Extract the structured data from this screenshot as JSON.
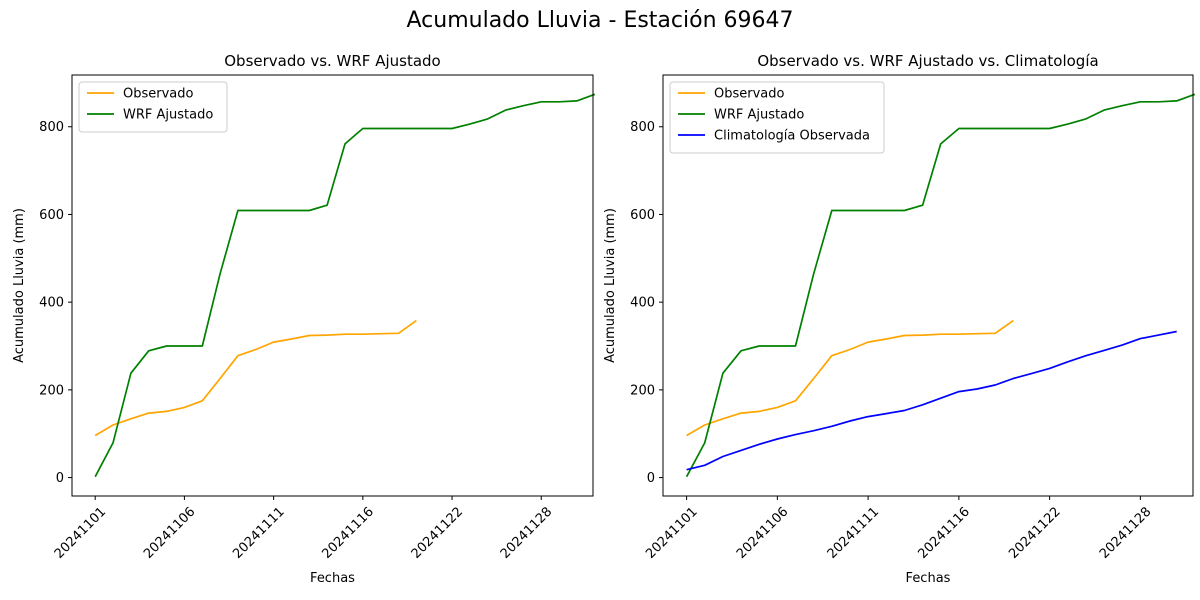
{
  "figure": {
    "suptitle": "Acumulado Lluvia - Estación 69647"
  },
  "chart_data": [
    {
      "type": "line",
      "title": "Observado vs. WRF Ajustado",
      "xlabel": "Fechas",
      "ylabel": "Acumulado Lluvia (mm)",
      "x_tick_labels": [
        "20241101",
        "20241106",
        "20241111",
        "20241116",
        "20241122",
        "20241128"
      ],
      "x_tick_index": [
        0,
        5,
        10,
        15,
        20,
        25
      ],
      "xlim_index": [
        -1.3,
        27.9
      ],
      "y_ticks": [
        0,
        200,
        400,
        600,
        800
      ],
      "ylim": [
        -42,
        918
      ],
      "grid": false,
      "legend": "upper left",
      "series": [
        {
          "name": "Observado",
          "color": "#FFA500",
          "values": [
            96,
            120,
            134,
            147,
            151,
            160,
            175,
            226,
            278,
            292,
            309,
            316,
            324,
            325,
            327,
            327,
            328,
            329,
            358
          ]
        },
        {
          "name": "WRF Ajustado",
          "color": "#008000",
          "values": [
            2,
            79,
            238,
            289,
            300,
            300,
            300,
            465,
            609,
            609,
            609,
            609,
            609,
            621,
            761,
            796,
            796,
            796,
            796,
            796,
            796,
            806,
            818,
            838,
            848,
            857,
            857,
            859,
            874
          ]
        }
      ]
    },
    {
      "type": "line",
      "title": "Observado vs. WRF Ajustado vs. Climatología",
      "xlabel": "Fechas",
      "ylabel": "Acumulado Lluvia (mm)",
      "x_tick_labels": [
        "20241101",
        "20241106",
        "20241111",
        "20241116",
        "20241122",
        "20241128"
      ],
      "x_tick_index": [
        0,
        5,
        10,
        15,
        20,
        25
      ],
      "xlim_index": [
        -1.3,
        27.9
      ],
      "y_ticks": [
        0,
        200,
        400,
        600,
        800
      ],
      "ylim": [
        -42,
        918
      ],
      "grid": false,
      "legend": "upper left",
      "series": [
        {
          "name": "Observado",
          "color": "#FFA500",
          "values": [
            96,
            120,
            134,
            147,
            151,
            160,
            175,
            226,
            278,
            292,
            309,
            316,
            324,
            325,
            327,
            327,
            328,
            329,
            358
          ]
        },
        {
          "name": "WRF Ajustado",
          "color": "#008000",
          "values": [
            2,
            79,
            238,
            289,
            300,
            300,
            300,
            465,
            609,
            609,
            609,
            609,
            609,
            621,
            761,
            796,
            796,
            796,
            796,
            796,
            796,
            806,
            818,
            838,
            848,
            857,
            857,
            859,
            874
          ]
        },
        {
          "name": "Climatología Observada",
          "color": "#0000FF",
          "values": [
            18,
            28,
            48,
            62,
            76,
            88,
            98,
            107,
            117,
            129,
            139,
            146,
            153,
            166,
            181,
            196,
            202,
            211,
            226,
            237,
            249,
            264,
            278,
            290,
            302,
            317,
            325,
            333
          ]
        }
      ]
    }
  ]
}
